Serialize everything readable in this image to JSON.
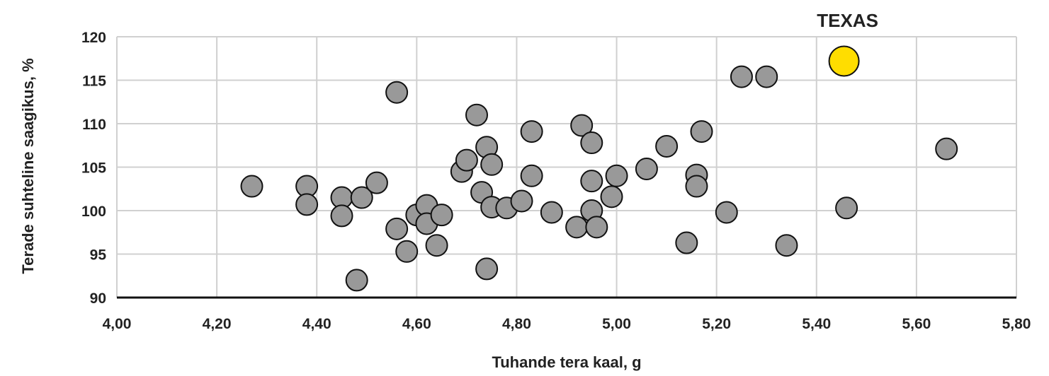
{
  "chart_data": {
    "type": "scatter",
    "title": "",
    "xlabel": "Tuhande tera kaal, g",
    "ylabel": "Terade  suhteline saagikus, %",
    "xlim": [
      4.0,
      5.8
    ],
    "ylim": [
      90,
      120
    ],
    "x_ticks": [
      4.0,
      4.2,
      4.4,
      4.6,
      4.8,
      5.0,
      5.2,
      5.4,
      5.6,
      5.8
    ],
    "x_tick_labels": [
      "4,00",
      "4,20",
      "4,40",
      "4,60",
      "4,80",
      "5,00",
      "5,20",
      "5,40",
      "5,60",
      "5,80"
    ],
    "y_ticks": [
      90,
      95,
      100,
      105,
      110,
      115,
      120
    ],
    "y_tick_labels": [
      "90",
      "95",
      "100",
      "105",
      "110",
      "115",
      "120"
    ],
    "grid": true,
    "colors": {
      "points": "#999999",
      "highlight": "#FFDD00",
      "stroke": "#111111",
      "grid": "#d0d0d0"
    },
    "points": [
      [
        4.27,
        102.8
      ],
      [
        4.38,
        102.8
      ],
      [
        4.38,
        100.7
      ],
      [
        4.45,
        101.5
      ],
      [
        4.45,
        99.4
      ],
      [
        4.48,
        92.0
      ],
      [
        4.49,
        101.5
      ],
      [
        4.52,
        103.2
      ],
      [
        4.56,
        113.6
      ],
      [
        4.56,
        97.9
      ],
      [
        4.58,
        95.3
      ],
      [
        4.6,
        99.5
      ],
      [
        4.62,
        100.6
      ],
      [
        4.62,
        98.5
      ],
      [
        4.64,
        96.0
      ],
      [
        4.65,
        99.5
      ],
      [
        4.69,
        104.5
      ],
      [
        4.7,
        105.8
      ],
      [
        4.72,
        111.0
      ],
      [
        4.73,
        102.1
      ],
      [
        4.74,
        107.3
      ],
      [
        4.74,
        93.3
      ],
      [
        4.75,
        105.3
      ],
      [
        4.75,
        100.4
      ],
      [
        4.78,
        100.3
      ],
      [
        4.81,
        101.1
      ],
      [
        4.83,
        109.1
      ],
      [
        4.83,
        104.0
      ],
      [
        4.87,
        99.8
      ],
      [
        4.92,
        98.1
      ],
      [
        4.93,
        109.8
      ],
      [
        4.95,
        107.8
      ],
      [
        4.95,
        103.4
      ],
      [
        4.95,
        100.0
      ],
      [
        4.96,
        98.1
      ],
      [
        4.99,
        101.6
      ],
      [
        5.0,
        104.0
      ],
      [
        5.06,
        104.8
      ],
      [
        5.1,
        107.4
      ],
      [
        5.14,
        96.3
      ],
      [
        5.16,
        104.1
      ],
      [
        5.16,
        102.8
      ],
      [
        5.17,
        109.1
      ],
      [
        5.22,
        99.8
      ],
      [
        5.25,
        115.4
      ],
      [
        5.3,
        115.4
      ],
      [
        5.34,
        96.0
      ],
      [
        5.46,
        100.3
      ],
      [
        5.66,
        107.1
      ]
    ],
    "highlight": {
      "label": "TEXAS",
      "x": 5.455,
      "y": 117.2
    }
  }
}
